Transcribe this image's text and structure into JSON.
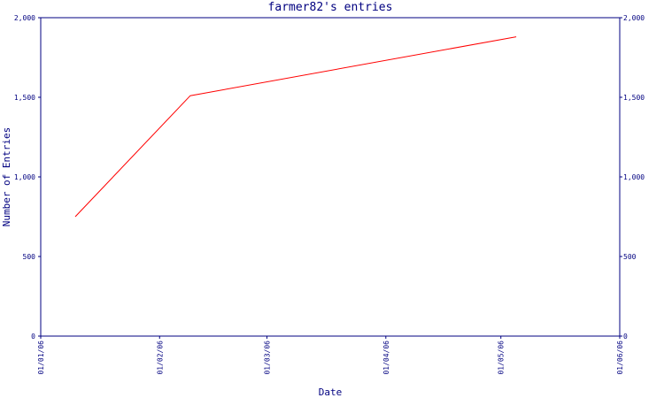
{
  "chart_data": {
    "type": "line",
    "title": "farmer82's entries",
    "xlabel": "Date",
    "ylabel": "Number of Entries",
    "x_ticks": [
      "01/01/06",
      "01/02/06",
      "01/03/06",
      "01/04/06",
      "01/05/06",
      "01/06/06"
    ],
    "x_range": [
      "2006-01-01",
      "2006-06-01"
    ],
    "y_ticks": [
      "0",
      "500",
      "1,000",
      "1,500",
      "2,000"
    ],
    "ylim": [
      0,
      2000
    ],
    "right_axis": true,
    "grid": false,
    "series": [
      {
        "x": [
          "2006-01-10",
          "2006-02-09",
          "2006-05-05"
        ],
        "y": [
          750,
          1510,
          1880
        ],
        "color": "#ff0000"
      }
    ],
    "colors": {
      "axis": "#000080",
      "line": "#ff0000",
      "background": "#ffffff"
    }
  }
}
